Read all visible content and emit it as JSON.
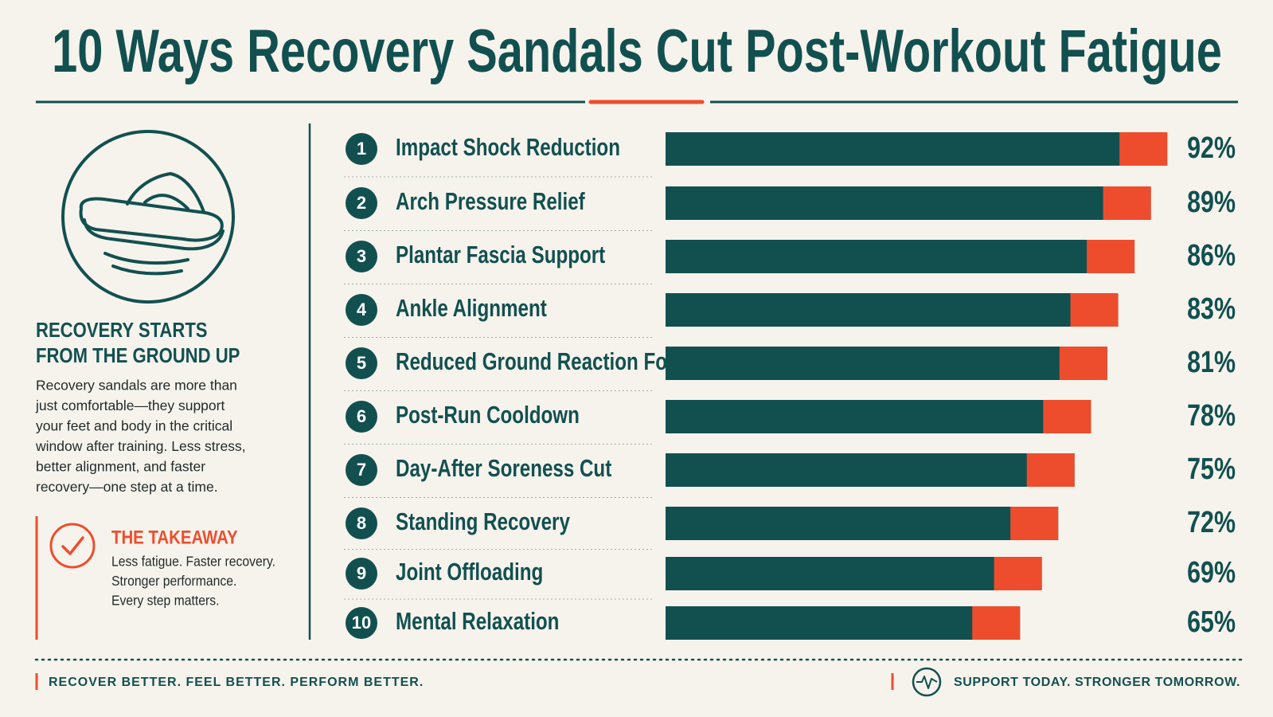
{
  "chart_data": {
    "type": "bar",
    "title": "10 Ways Recovery Sandals Cut Post-Workout Fatigue",
    "ranks": [
      1,
      2,
      3,
      4,
      5,
      6,
      7,
      8,
      9,
      10
    ],
    "categories": [
      "Impact Shock Reduction",
      "Arch Pressure Relief",
      "Plantar Fascia Support",
      "Ankle Alignment",
      "Reduced Ground Reaction Force",
      "Post-Run Cooldown",
      "Day-After Soreness Cut",
      "Standing Recovery",
      "Joint Offloading",
      "Mental Relaxation"
    ],
    "values": [
      92,
      89,
      86,
      83,
      81,
      78,
      75,
      72,
      69,
      65
    ],
    "value_labels": [
      "92%",
      "89%",
      "86%",
      "83%",
      "81%",
      "78%",
      "75%",
      "72%",
      "69%",
      "65%"
    ],
    "xlim": [
      0,
      100
    ],
    "color": "#125050",
    "accent_color": "#ee4d2d"
  },
  "sidebar": {
    "heading": [
      "RECOVERY STARTS",
      "FROM THE GROUND UP"
    ],
    "body": [
      "Recovery sandals are more than",
      "just comfortable—they support",
      "your feet and body in the critical",
      "window after training. Less stress,",
      "better alignment, and faster",
      "recovery—one step at a time."
    ],
    "takeaway_title": "THE TAKEAWAY",
    "takeaway": [
      "Less fatigue. Faster recovery.",
      "Stronger performance.",
      "Every step matters."
    ]
  },
  "footer": {
    "left": "RECOVER BETTER. FEEL BETTER. PERFORM BETTER.",
    "right": "SUPPORT TODAY. STRONGER TOMORROW."
  }
}
